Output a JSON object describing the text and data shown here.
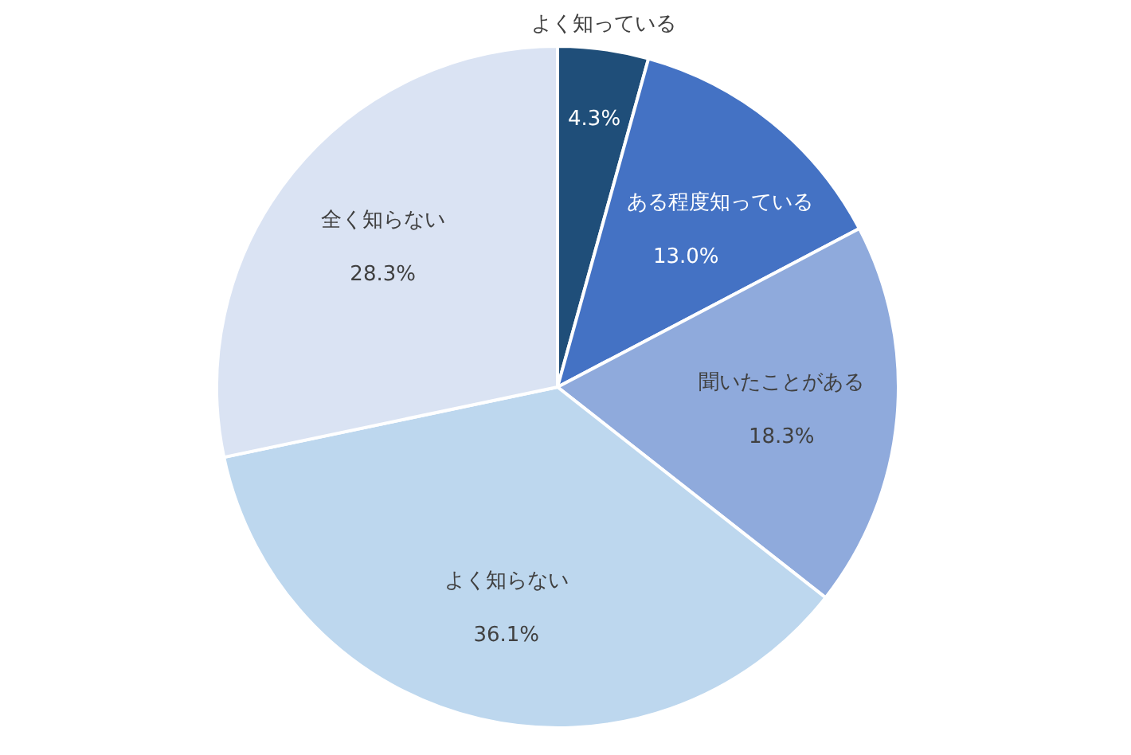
{
  "chart_data": {
    "type": "pie",
    "categories": [
      "よく知っている",
      "ある程度知っている",
      "聞いたことがある",
      "よく知らない",
      "全く知らない"
    ],
    "values": [
      4.3,
      13.0,
      18.3,
      36.1,
      28.3
    ],
    "colors": [
      "#1f4e79",
      "#4472c4",
      "#8faadc",
      "#bdd7ee",
      "#dae3f3"
    ],
    "value_labels": [
      "4.3%",
      "13.0%",
      "18.3%",
      "36.1%",
      "28.3%"
    ]
  }
}
